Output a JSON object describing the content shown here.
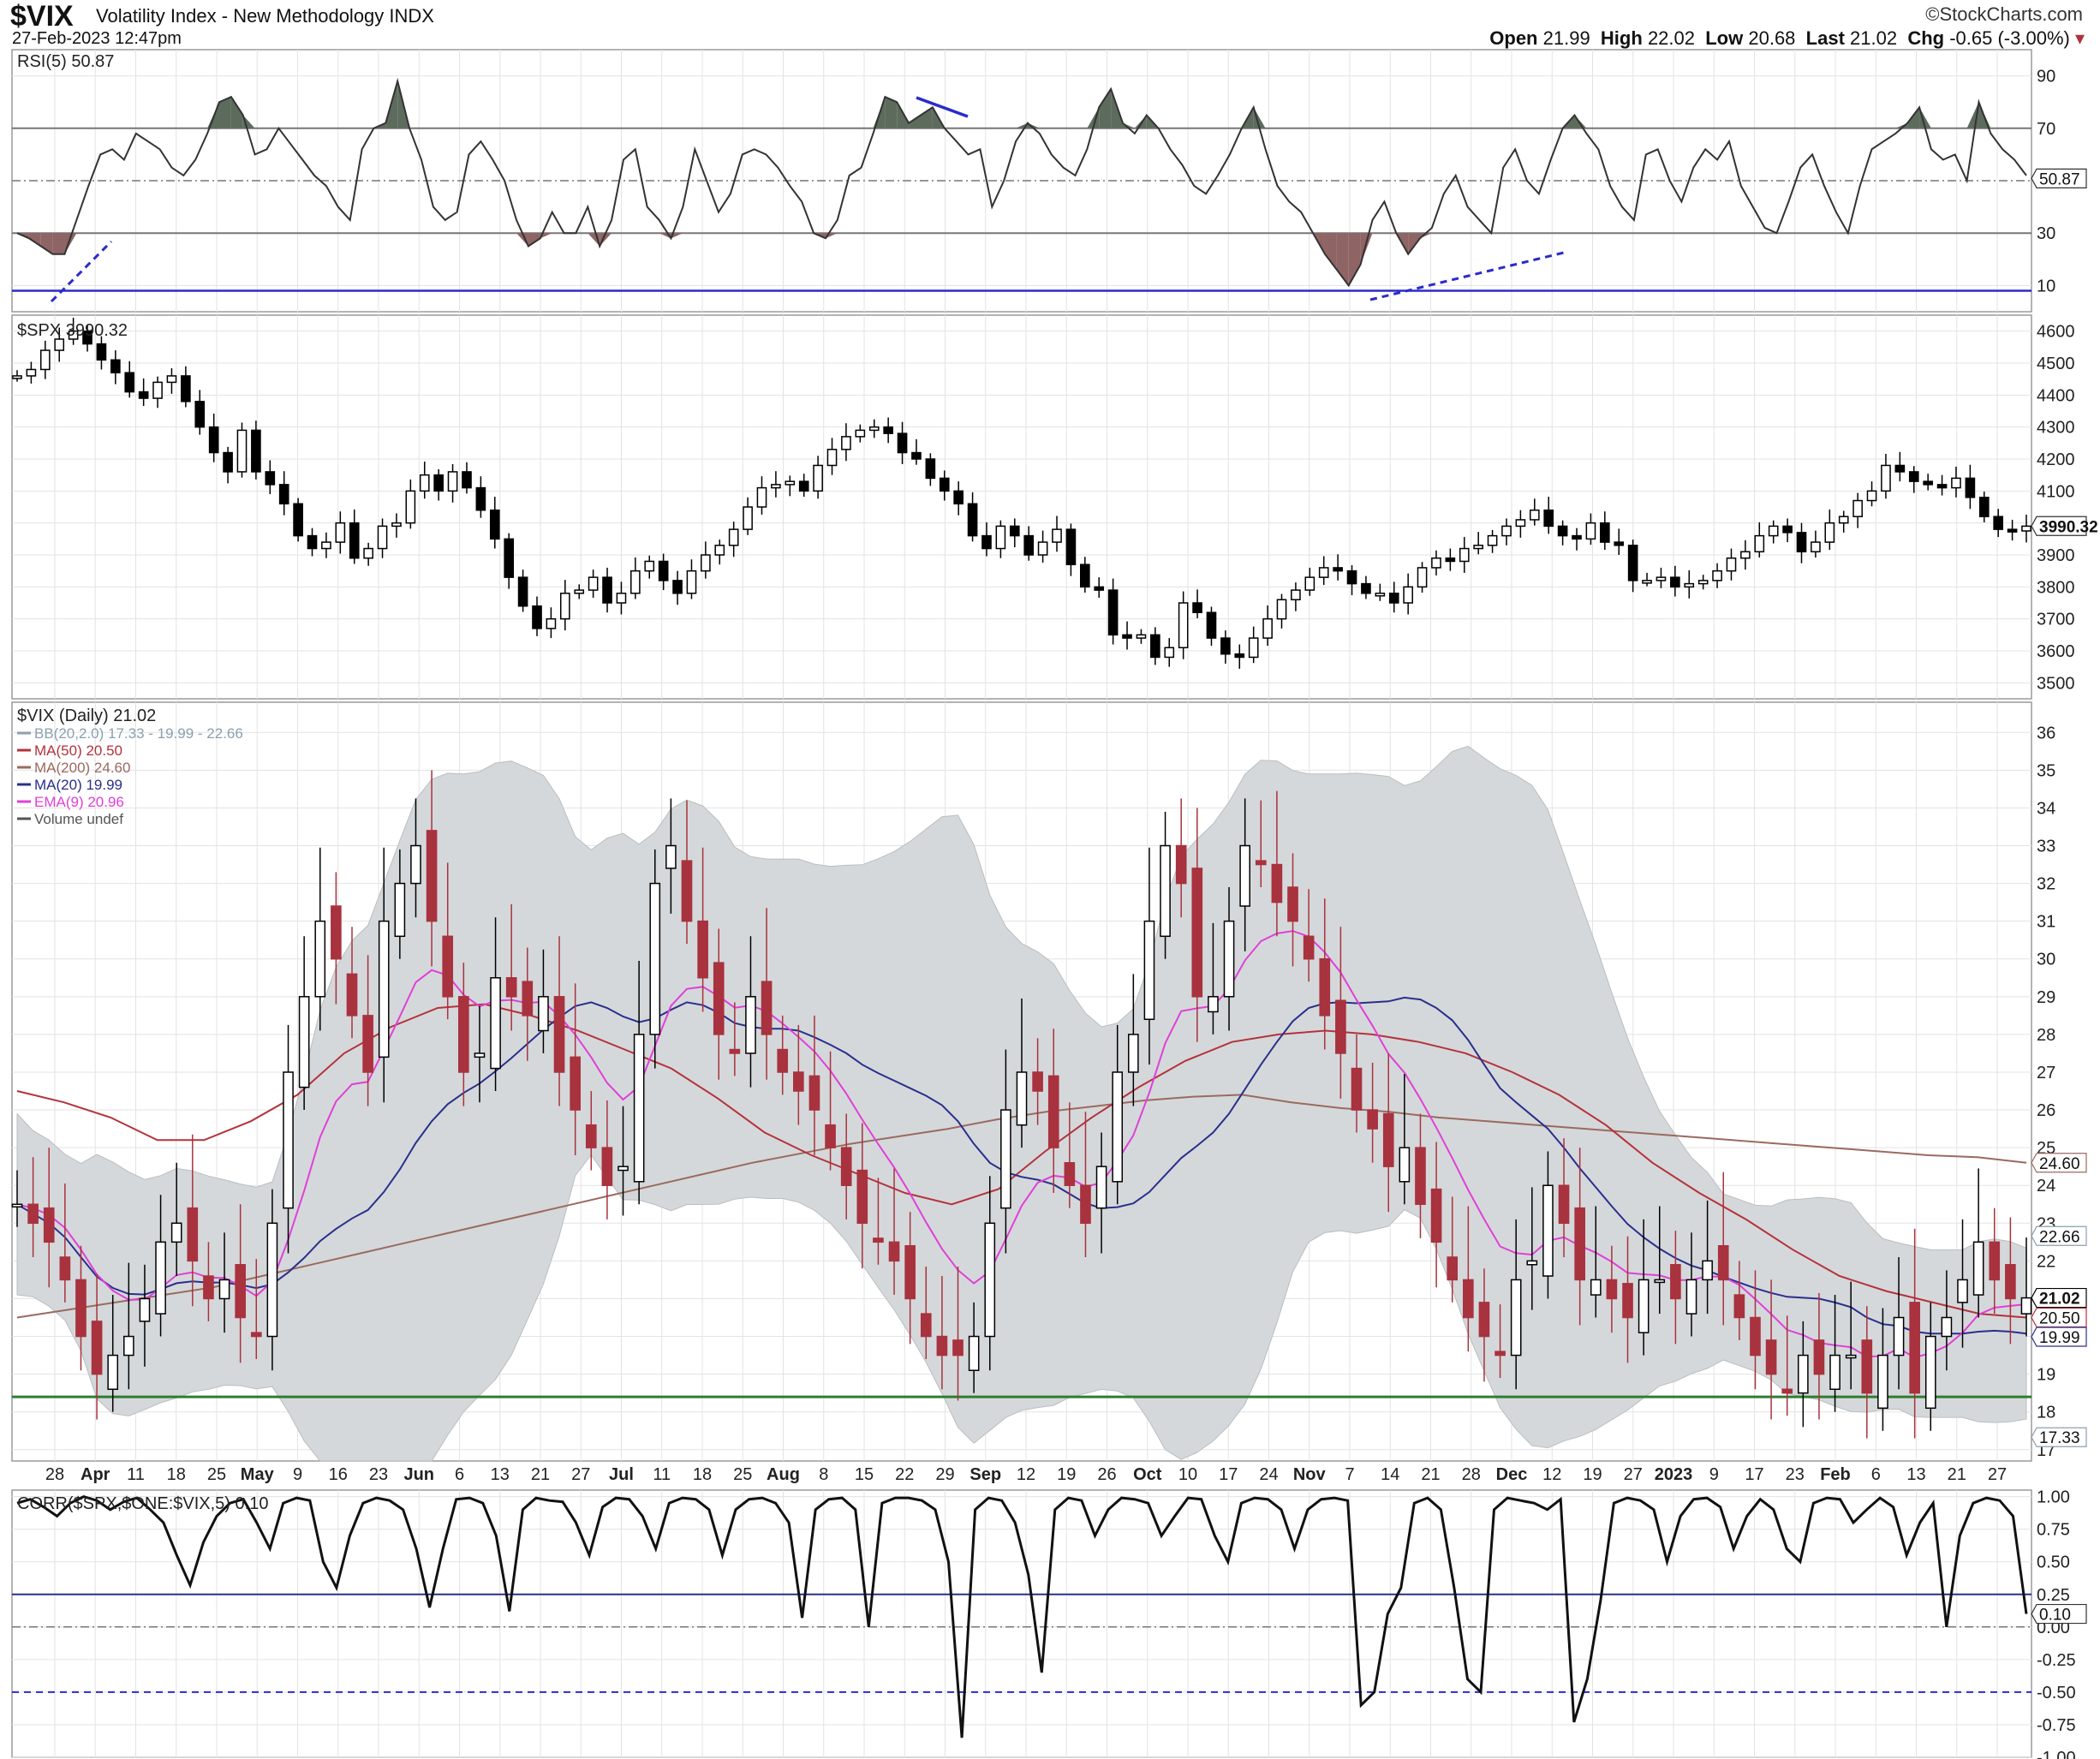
{
  "header": {
    "symbol": "$VIX",
    "description": "Volatility Index - New Methodology  INDX",
    "datetime": "27-Feb-2023 12:47pm",
    "brand": "©StockCharts.com",
    "quote": {
      "open_label": "Open",
      "open": "21.99",
      "high_label": "High",
      "high": "22.02",
      "low_label": "Low",
      "low": "20.68",
      "last_label": "Last",
      "last": "21.02",
      "chg_label": "Chg",
      "chg": "-0.65 (-3.00%)"
    }
  },
  "colors": {
    "up": "#ffffff",
    "down": "#000000",
    "vix_down": "#a8323e",
    "bb_fill": "#d5d8da",
    "ma50": "#b4323c",
    "ma200": "#9a6a60",
    "ma20": "#2a2f8c",
    "ema9": "#e040d8",
    "support": "#2e7d32",
    "rsi_line": "#2b2bcc",
    "rsi_over": "#5d6b5d",
    "rsi_under": "#8e6464"
  },
  "chart_data": [
    {
      "type": "line",
      "panel": "RSI",
      "title": "RSI(5) 50.87",
      "last_label": "50.87",
      "ylim": [
        0,
        100
      ],
      "yticks": [
        10,
        30,
        70,
        90
      ],
      "reference_lines": [
        30,
        50,
        70
      ],
      "horizontal_line": 8,
      "series": [
        {
          "values": [
            30,
            28,
            25,
            22,
            22,
            35,
            48,
            60,
            62,
            58,
            68,
            65,
            62,
            55,
            52,
            58,
            68,
            80,
            82,
            75,
            60,
            62,
            70,
            64,
            58,
            52,
            48,
            40,
            35,
            62,
            70,
            72,
            88,
            70,
            58,
            40,
            35,
            38,
            60,
            65,
            58,
            50,
            35,
            25,
            28,
            38,
            30,
            30,
            40,
            25,
            35,
            58,
            62,
            40,
            35,
            28,
            40,
            62,
            50,
            38,
            45,
            60,
            62,
            60,
            55,
            48,
            42,
            30,
            28,
            35,
            52,
            55,
            68,
            82,
            80,
            72,
            75,
            78,
            70,
            65,
            60,
            62,
            40,
            50,
            65,
            72,
            68,
            60,
            55,
            52,
            62,
            78,
            85,
            72,
            68,
            75,
            70,
            62,
            56,
            48,
            45,
            52,
            60,
            70,
            78,
            62,
            48,
            42,
            38,
            30,
            22,
            16,
            10,
            18,
            35,
            42,
            30,
            22,
            28,
            32,
            45,
            52,
            40,
            35,
            30,
            55,
            62,
            50,
            45,
            58,
            70,
            75,
            68,
            62,
            48,
            40,
            35,
            60,
            62,
            50,
            42,
            55,
            62,
            58,
            65,
            48,
            40,
            32,
            30,
            42,
            55,
            60,
            48,
            38,
            30,
            48,
            62,
            65,
            68,
            72,
            78,
            62,
            58,
            60,
            50,
            80,
            68,
            62,
            58,
            52
          ]
        }
      ]
    },
    {
      "type": "candlestick",
      "panel": "SPX",
      "title": "$SPX 3990.32",
      "last_label": "3990.32",
      "ylim": [
        3450,
        4650
      ],
      "yticks": [
        3500,
        3600,
        3700,
        3800,
        3900,
        4000,
        4100,
        4200,
        4300,
        4400,
        4500,
        4600
      ],
      "close": [
        4460,
        4480,
        4540,
        4575,
        4600,
        4560,
        4510,
        4470,
        4410,
        4390,
        4440,
        4460,
        4380,
        4300,
        4220,
        4160,
        4290,
        4160,
        4120,
        4060,
        3960,
        3920,
        3940,
        4000,
        3890,
        3920,
        3990,
        4000,
        4100,
        4150,
        4100,
        4160,
        4110,
        4040,
        3950,
        3830,
        3740,
        3670,
        3700,
        3780,
        3790,
        3830,
        3750,
        3780,
        3850,
        3880,
        3820,
        3780,
        3850,
        3900,
        3930,
        3980,
        4050,
        4110,
        4120,
        4130,
        4100,
        4180,
        4230,
        4270,
        4290,
        4300,
        4280,
        4220,
        4200,
        4140,
        4100,
        4060,
        3960,
        3920,
        3990,
        3960,
        3900,
        3940,
        3980,
        3870,
        3800,
        3790,
        3650,
        3640,
        3650,
        3580,
        3610,
        3750,
        3720,
        3640,
        3590,
        3580,
        3640,
        3700,
        3760,
        3790,
        3830,
        3860,
        3850,
        3810,
        3780,
        3780,
        3750,
        3800,
        3860,
        3890,
        3880,
        3920,
        3930,
        3960,
        3990,
        4010,
        4040,
        3990,
        3960,
        3950,
        4000,
        3940,
        3930,
        3820,
        3820,
        3830,
        3800,
        3810,
        3820,
        3850,
        3890,
        3910,
        3960,
        3990,
        3970,
        3910,
        3940,
        4000,
        4020,
        4070,
        4100,
        4180,
        4160,
        4130,
        4120,
        4110,
        4140,
        4080,
        4020,
        3980,
        3975,
        3990
      ]
    },
    {
      "type": "candlestick",
      "panel": "VIX",
      "title": "$VIX (Daily) 21.02",
      "ylim": [
        16.7,
        36.8
      ],
      "yticks": [
        17,
        18,
        19,
        20,
        21,
        22,
        23,
        24,
        25,
        26,
        27,
        28,
        29,
        30,
        31,
        32,
        33,
        34,
        35,
        36
      ],
      "support_line": 18.4,
      "overlays": [
        {
          "name": "BB(20,2.0) 17.33 - 19.99 - 22.66",
          "color": "#8aa0b0"
        },
        {
          "name": "MA(50) 20.50",
          "color": "#b4323c"
        },
        {
          "name": "MA(200) 24.60",
          "color": "#9a6a60"
        },
        {
          "name": "MA(20) 19.99",
          "color": "#2a2f8c"
        },
        {
          "name": "EMA(9) 20.96",
          "color": "#e040d8"
        },
        {
          "name": "Volume undef",
          "color": "#555555"
        }
      ],
      "price_labels": [
        "24.60",
        "22.66",
        "21.02",
        "20.50",
        "19.99",
        "17.33"
      ],
      "close": [
        23.5,
        23,
        22.5,
        21.5,
        20,
        19,
        19.5,
        20,
        21,
        22.5,
        23,
        22,
        21,
        21.5,
        20.5,
        20,
        23,
        27,
        29,
        31,
        30,
        28.5,
        27,
        31,
        32,
        33,
        31,
        29,
        27,
        27.5,
        29.5,
        29,
        28.5,
        29,
        27,
        26,
        25,
        24,
        24.5,
        28,
        32,
        33,
        31,
        29.5,
        28,
        27.5,
        29,
        28,
        27,
        26.5,
        26,
        25,
        24,
        23,
        22.5,
        22,
        21,
        20,
        19.5,
        19.5,
        20,
        23,
        26,
        27,
        26.5,
        25,
        24,
        23,
        24.5,
        27,
        28,
        31,
        33,
        32,
        29,
        29,
        31,
        33,
        32.5,
        31.5,
        31,
        30,
        28.5,
        27.5,
        26,
        25.5,
        24.5,
        25,
        23.5,
        22.5,
        21.5,
        20.5,
        20,
        19.5,
        21.5,
        22,
        24,
        23,
        21.5,
        21.5,
        21,
        20.5,
        21.5,
        21.5,
        21,
        21.5,
        22,
        21.5,
        20.5,
        19.5,
        19,
        18.5,
        19.5,
        19,
        19.5,
        19.5,
        18.5,
        19.5,
        20.5,
        18.5,
        20,
        20.5,
        21.5,
        22.5,
        21.5,
        21,
        21.02
      ],
      "ma200": [
        20.5,
        20.7,
        20.9,
        21.1,
        21.3,
        21.6,
        21.9,
        22.2,
        22.5,
        22.8,
        23.1,
        23.4,
        23.7,
        24,
        24.3,
        24.6,
        24.85,
        25.1,
        25.3,
        25.5,
        25.75,
        25.95,
        26.1,
        26.25,
        26.35,
        26.4,
        26.2,
        26.05,
        25.95,
        25.8,
        25.7,
        25.6,
        25.5,
        25.4,
        25.3,
        25.2,
        25.1,
        25.0,
        24.9,
        24.8,
        24.75,
        24.6
      ],
      "ma50": [
        26.5,
        26.2,
        25.8,
        25.2,
        25.2,
        25.7,
        26.4,
        27.5,
        28.2,
        28.7,
        28.8,
        28.5,
        28.1,
        27.6,
        27.1,
        26.3,
        25.4,
        24.8,
        24.3,
        23.8,
        23.5,
        23.9,
        24.9,
        25.8,
        26.6,
        27.3,
        27.8,
        28,
        28.1,
        28,
        27.8,
        27.5,
        27,
        26.4,
        25.6,
        24.6,
        23.8,
        23.1,
        22.3,
        21.6,
        21.2,
        20.9,
        20.6,
        20.5
      ]
    },
    {
      "type": "line",
      "panel": "CORR",
      "title": "CORR($SPX,$ONE:$VIX,5) 0.10",
      "last_label": "0.10",
      "ylim": [
        -1.0,
        1.05
      ],
      "yticks": [
        1.0,
        0.75,
        0.5,
        0.25,
        0.0,
        -0.25,
        -0.5,
        -0.75,
        -1.0
      ],
      "reference_lines": [
        0.25,
        0.0,
        -0.5
      ],
      "series": [
        {
          "values": [
            0.95,
            0.98,
            0.92,
            0.85,
            0.95,
            1,
            0.97,
            0.9,
            0.96,
            0.99,
            0.9,
            0.8,
            0.55,
            0.32,
            0.65,
            0.85,
            0.95,
            0.98,
            0.8,
            0.6,
            0.95,
            0.99,
            0.97,
            0.5,
            0.3,
            0.7,
            0.95,
            0.99,
            0.97,
            0.9,
            0.6,
            0.15,
            0.6,
            0.98,
            0.99,
            0.95,
            0.7,
            0.12,
            0.9,
            0.99,
            0.97,
            0.96,
            0.8,
            0.55,
            0.92,
            0.99,
            0.98,
            0.85,
            0.6,
            0.95,
            0.99,
            0.98,
            0.9,
            0.55,
            0.9,
            0.98,
            0.99,
            0.95,
            0.8,
            0.07,
            0.9,
            0.98,
            0.99,
            0.9,
            0.0,
            0.95,
            0.99,
            0.99,
            0.97,
            0.9,
            0.5,
            -0.85,
            0.9,
            0.99,
            0.97,
            0.8,
            0.4,
            -0.35,
            0.9,
            0.99,
            0.97,
            0.7,
            0.9,
            0.99,
            0.98,
            0.95,
            0.7,
            0.85,
            0.99,
            0.98,
            0.7,
            0.5,
            0.95,
            0.99,
            0.98,
            0.9,
            0.6,
            0.9,
            0.98,
            0.99,
            0.97,
            -0.6,
            -0.5,
            0.1,
            0.3,
            0.95,
            0.99,
            0.9,
            0.3,
            -0.4,
            -0.5,
            0.9,
            0.99,
            0.97,
            0.95,
            0.9,
            0.98,
            -0.73,
            -0.4,
            0.2,
            0.95,
            0.99,
            0.97,
            0.9,
            0.5,
            0.85,
            0.98,
            0.99,
            0.92,
            0.6,
            0.85,
            0.98,
            0.9,
            0.6,
            0.5,
            0.95,
            0.99,
            0.98,
            0.8,
            0.9,
            0.99,
            0.92,
            0.55,
            0.8,
            0.95,
            0.0,
            0.7,
            0.95,
            0.99,
            0.97,
            0.85,
            0.1
          ]
        }
      ]
    }
  ],
  "x_axis": {
    "labels": [
      "28",
      "Apr",
      "11",
      "18",
      "25",
      "May",
      "9",
      "16",
      "23",
      "Jun",
      "6",
      "13",
      "21",
      "27",
      "Jul",
      "11",
      "18",
      "25",
      "Aug",
      "8",
      "15",
      "22",
      "29",
      "Sep",
      "12",
      "19",
      "26",
      "Oct",
      "10",
      "17",
      "24",
      "Nov",
      "7",
      "14",
      "21",
      "28",
      "Dec",
      "12",
      "19",
      "27",
      "2023",
      "9",
      "17",
      "23",
      "Feb",
      "6",
      "13",
      "21",
      "27"
    ],
    "bold": [
      "Apr",
      "May",
      "Jun",
      "Jul",
      "Aug",
      "Sep",
      "Oct",
      "Nov",
      "Dec",
      "2023",
      "Feb"
    ]
  }
}
